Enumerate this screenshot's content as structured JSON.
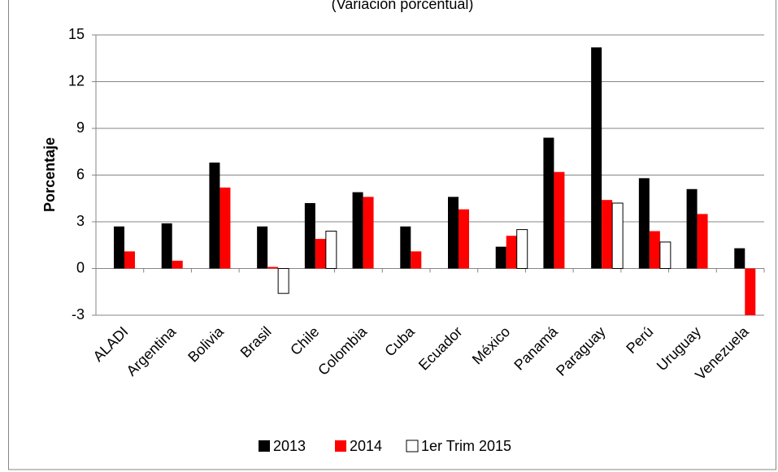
{
  "chart_data": {
    "type": "bar",
    "subtitle": "(Variación porcentual)",
    "y_label": "Porcentaje",
    "categories": [
      "ALADI",
      "Argentina",
      "Bolivia",
      "Brasil",
      "Chile",
      "Colombia",
      "Cuba",
      "Ecuador",
      "México",
      "Panamá",
      "Paraguay",
      "Perú",
      "Uruguay",
      "Venezuela"
    ],
    "series": [
      {
        "name": "2013",
        "color": "#000000",
        "values": [
          2.7,
          2.9,
          6.8,
          2.7,
          4.2,
          4.9,
          2.7,
          4.6,
          1.4,
          8.4,
          14.2,
          5.8,
          5.1,
          1.3
        ]
      },
      {
        "name": "2014",
        "color": "#ff0000",
        "values": [
          1.1,
          0.5,
          5.2,
          0.1,
          1.9,
          4.6,
          1.1,
          3.8,
          2.1,
          6.2,
          4.4,
          2.4,
          3.5,
          -3.0
        ]
      },
      {
        "name": "1er Trim 2015",
        "color": "#ffffff",
        "values": [
          null,
          null,
          null,
          -1.6,
          2.4,
          null,
          null,
          null,
          2.5,
          null,
          4.2,
          1.7,
          null,
          null
        ]
      }
    ],
    "ylim": [
      -3,
      15
    ],
    "yticks": [
      -3,
      0,
      3,
      6,
      9,
      12,
      15
    ],
    "grid": true
  }
}
